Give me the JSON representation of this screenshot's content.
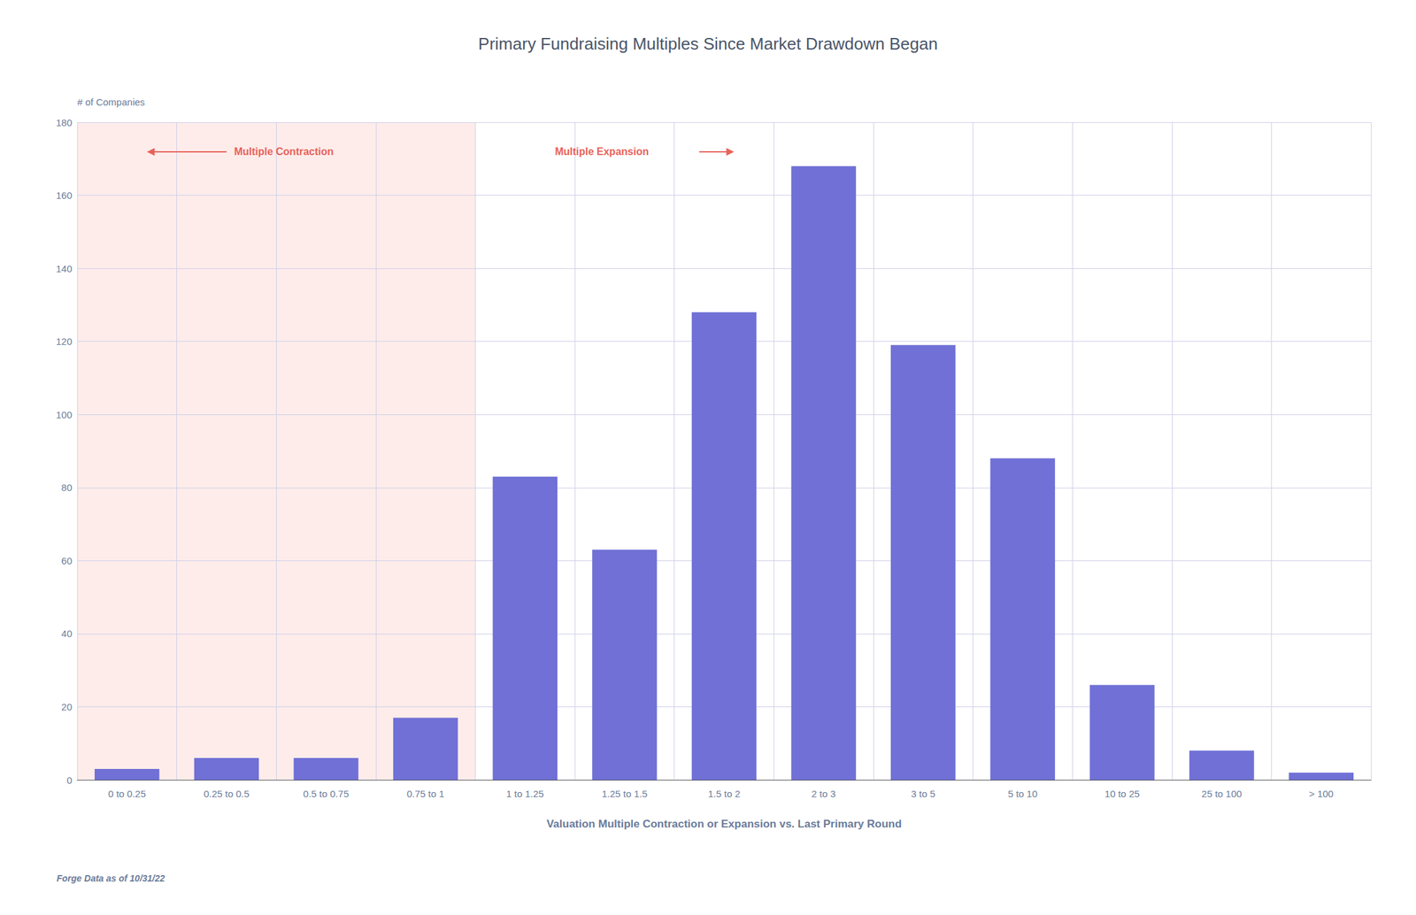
{
  "chart_data": {
    "type": "bar",
    "title": "Primary Fundraising Multiples Since Market Drawdown Began",
    "ylabel": "# of Companies",
    "xlabel": "Valuation Multiple Contraction or Expansion vs. Last Primary Round",
    "footnote": "Forge Data as of 10/31/22",
    "categories": [
      "0 to 0.25",
      "0.25 to 0.5",
      "0.5 to 0.75",
      "0.75 to 1",
      "1 to 1.25",
      "1.25 to 1.5",
      "1.5 to 2",
      "2 to 3",
      "3 to 5",
      "5 to 10",
      "10 to 25",
      "25 to 100",
      "> 100"
    ],
    "values": [
      3,
      6,
      6,
      17,
      83,
      63,
      128,
      168,
      119,
      88,
      26,
      8,
      2
    ],
    "color": "#7070D6",
    "ylim": [
      0,
      180
    ],
    "yticks": [
      0,
      20,
      40,
      60,
      80,
      100,
      120,
      140,
      160,
      180
    ],
    "grid": true,
    "regions": [
      {
        "from": "0 to 0.25",
        "to": "0.75 to 1",
        "color": "#FDECEA"
      }
    ],
    "annotations": [
      {
        "text": "Multiple Contraction",
        "color": "#E8625A",
        "arrow": "left"
      },
      {
        "text": "Multiple Expansion",
        "color": "#E8625A",
        "arrow": "right"
      }
    ]
  }
}
